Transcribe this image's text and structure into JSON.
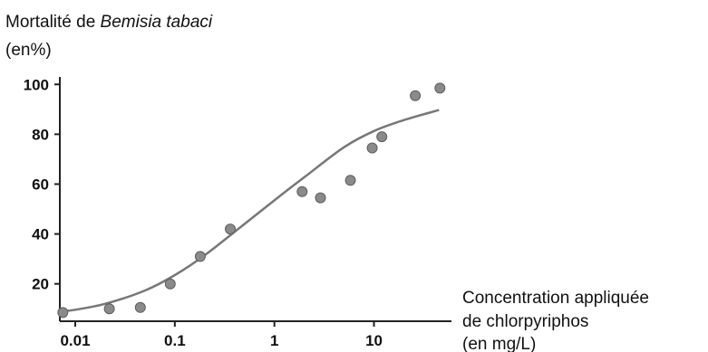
{
  "chart_data": {
    "type": "scatter",
    "title": "",
    "ylabel": {
      "prefix": "Mortalité de ",
      "species": "Bemisia tabaci",
      "unit": "(en%)"
    },
    "xlabel": {
      "line1": "Concentration appliquée",
      "line2": "de chlorpyriphos",
      "line3": "(en mg/L)"
    },
    "x_scale": "log",
    "xlim": [
      0.007,
      60
    ],
    "ylim": [
      5,
      103
    ],
    "x_ticks": [
      {
        "value": 0.01,
        "label": "0.01"
      },
      {
        "value": 0.1,
        "label": "0.1"
      },
      {
        "value": 1,
        "label": "1"
      },
      {
        "value": 10,
        "label": "10"
      }
    ],
    "y_ticks": [
      {
        "value": 20,
        "label": "20"
      },
      {
        "value": 40,
        "label": "40"
      },
      {
        "value": 60,
        "label": "60"
      },
      {
        "value": 80,
        "label": "80"
      },
      {
        "value": 100,
        "label": "100"
      }
    ],
    "grid": false,
    "series": [
      {
        "kind": "points",
        "color": "#8a8a8a",
        "x": [
          0.0075,
          0.022,
          0.045,
          0.09,
          0.18,
          0.36,
          1.9,
          2.9,
          5.8,
          9.6,
          12,
          26,
          46
        ],
        "y": [
          8.5,
          10,
          10.5,
          20,
          31,
          42,
          57,
          54.5,
          61.5,
          74.5,
          79,
          95.5,
          98.5
        ]
      },
      {
        "kind": "fit-curve",
        "color": "#777777",
        "x": [
          0.0075,
          0.01,
          0.02,
          0.05,
          0.1,
          0.2,
          0.5,
          1,
          2,
          5,
          10,
          20,
          45
        ],
        "y": [
          9,
          9.6,
          12,
          17.3,
          23.5,
          31.5,
          44,
          53.5,
          62.8,
          74.8,
          81.3,
          85.7,
          89.7
        ]
      }
    ]
  }
}
